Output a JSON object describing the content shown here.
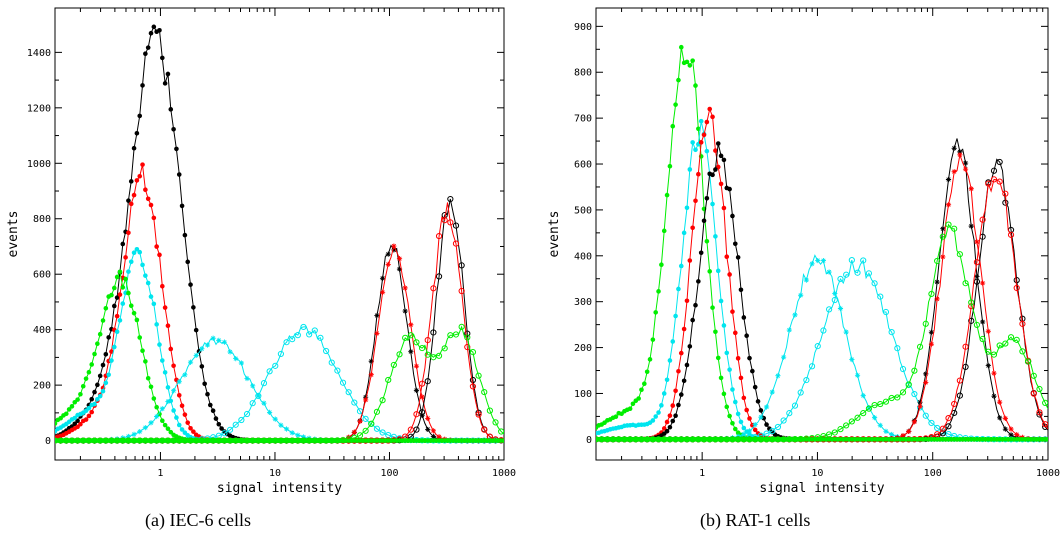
{
  "chart_data": [
    {
      "type": "line",
      "caption": "(a)  IEC-6 cells",
      "xlabel": "signal intensity",
      "ylabel": "events",
      "xscale": "log",
      "xlim": [
        0.12,
        1000
      ],
      "ylim": [
        -70,
        1560
      ],
      "xticks": [
        {
          "v": 1,
          "label": "1"
        },
        {
          "v": 10,
          "label": "10"
        },
        {
          "v": 100,
          "label": "100"
        },
        {
          "v": 1000,
          "label": "1000"
        }
      ],
      "yticks": [
        0,
        200,
        400,
        600,
        800,
        1000,
        1200,
        1400
      ],
      "grid": false,
      "series": [
        {
          "color": "#000000",
          "marker": "dot",
          "peaks": [
            {
              "c": 0.9,
              "w": 0.22,
              "h": 1450
            },
            {
              "c": 0.3,
              "w": 0.2,
              "h": 100
            }
          ]
        },
        {
          "color": "#ff0000",
          "marker": "dot",
          "peaks": [
            {
              "c": 0.7,
              "w": 0.17,
              "h": 940
            },
            {
              "c": 0.3,
              "w": 0.2,
              "h": 80
            }
          ]
        },
        {
          "color": "#00e5ee",
          "marker": "dot",
          "peaks": [
            {
              "c": 0.65,
              "w": 0.16,
              "h": 650
            },
            {
              "c": 0.25,
              "w": 0.22,
              "h": 100
            }
          ]
        },
        {
          "color": "#00ee00",
          "marker": "dot",
          "peaks": [
            {
              "c": 0.45,
              "w": 0.18,
              "h": 570
            },
            {
              "c": 0.18,
              "w": 0.2,
              "h": 90
            }
          ]
        },
        {
          "color": "#00e5ee",
          "marker": "star",
          "peaks": [
            {
              "c": 3,
              "w": 0.3,
              "h": 360
            }
          ]
        },
        {
          "color": "#00e5ee",
          "marker": "circle",
          "peaks": [
            {
              "c": 18,
              "w": 0.3,
              "h": 400
            }
          ]
        },
        {
          "color": "#000000",
          "marker": "star",
          "peaks": [
            {
              "c": 105,
              "w": 0.13,
              "h": 720
            }
          ]
        },
        {
          "color": "#ff0000",
          "marker": "star",
          "peaks": [
            {
              "c": 110,
              "w": 0.14,
              "h": 690
            }
          ]
        },
        {
          "color": "#000000",
          "marker": "circle",
          "peaks": [
            {
              "c": 340,
              "w": 0.12,
              "h": 860
            }
          ]
        },
        {
          "color": "#ff0000",
          "marker": "circle",
          "peaks": [
            {
              "c": 320,
              "w": 0.13,
              "h": 830
            }
          ]
        },
        {
          "color": "#00ee00",
          "marker": "circle",
          "peaks": [
            {
              "c": 150,
              "w": 0.18,
              "h": 360
            },
            {
              "c": 420,
              "w": 0.16,
              "h": 380
            }
          ]
        },
        {
          "color": "#00ee00",
          "marker": "dot",
          "peaks": []
        }
      ]
    },
    {
      "type": "line",
      "caption": "(b)  RAT-1 cells",
      "xlabel": "signal intensity",
      "ylabel": "events",
      "xscale": "log",
      "xlim": [
        0.12,
        1000
      ],
      "ylim": [
        -45,
        940
      ],
      "xticks": [
        {
          "v": 1,
          "label": "1"
        },
        {
          "v": 10,
          "label": "10"
        },
        {
          "v": 100,
          "label": "100"
        },
        {
          "v": 1000,
          "label": "1000"
        }
      ],
      "yticks": [
        0,
        100,
        200,
        300,
        400,
        500,
        600,
        700,
        800,
        900
      ],
      "grid": false,
      "series": [
        {
          "color": "#00ee00",
          "marker": "dot",
          "peaks": [
            {
              "c": 0.72,
              "w": 0.16,
              "h": 850
            },
            {
              "c": 0.25,
              "w": 0.25,
              "h": 60
            }
          ]
        },
        {
          "color": "#00e5ee",
          "marker": "dot",
          "peaks": [
            {
              "c": 0.95,
              "w": 0.15,
              "h": 670
            },
            {
              "c": 0.25,
              "w": 0.25,
              "h": 30
            }
          ]
        },
        {
          "color": "#ff0000",
          "marker": "dot",
          "peaks": [
            {
              "c": 1.15,
              "w": 0.15,
              "h": 700
            }
          ]
        },
        {
          "color": "#000000",
          "marker": "dot",
          "peaks": [
            {
              "c": 1.4,
              "w": 0.17,
              "h": 620
            }
          ]
        },
        {
          "color": "#00e5ee",
          "marker": "star",
          "peaks": [
            {
              "c": 10,
              "w": 0.24,
              "h": 390
            }
          ]
        },
        {
          "color": "#00e5ee",
          "marker": "circle",
          "peaks": [
            {
              "c": 22,
              "w": 0.3,
              "h": 380
            }
          ]
        },
        {
          "color": "#000000",
          "marker": "star",
          "peaks": [
            {
              "c": 165,
              "w": 0.16,
              "h": 630
            }
          ]
        },
        {
          "color": "#ff0000",
          "marker": "star",
          "peaks": [
            {
              "c": 175,
              "w": 0.17,
              "h": 610
            }
          ]
        },
        {
          "color": "#000000",
          "marker": "circle",
          "peaks": [
            {
              "c": 360,
              "w": 0.17,
              "h": 590
            }
          ]
        },
        {
          "color": "#ff0000",
          "marker": "circle",
          "peaks": [
            {
              "c": 350,
              "w": 0.18,
              "h": 575
            }
          ]
        },
        {
          "color": "#00ee00",
          "marker": "circle",
          "peaks": [
            {
              "c": 140,
              "w": 0.18,
              "h": 440
            },
            {
              "c": 500,
              "w": 0.2,
              "h": 210
            },
            {
              "c": 40,
              "w": 0.25,
              "h": 80
            }
          ]
        },
        {
          "color": "#00ee00",
          "marker": "dot",
          "peaks": []
        }
      ]
    }
  ]
}
